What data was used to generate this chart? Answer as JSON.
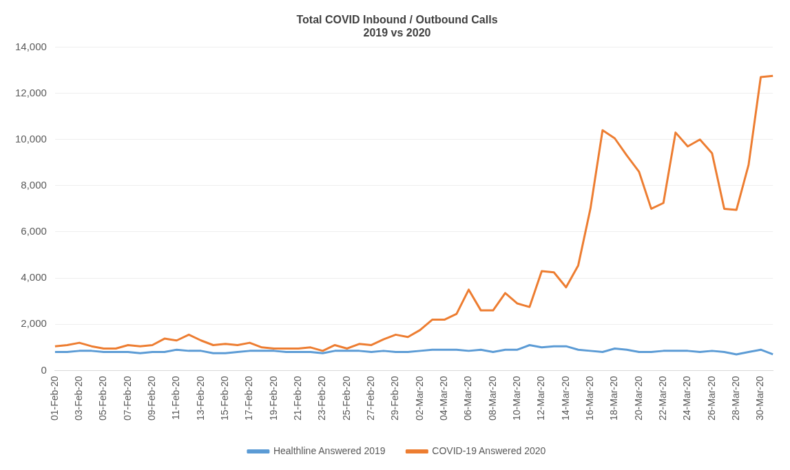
{
  "chart_data": {
    "type": "line",
    "title": [
      "Total COVID Inbound / Outbound Calls",
      "2019 vs 2020"
    ],
    "categories": [
      "01-Feb-20",
      null,
      "03-Feb-20",
      null,
      "05-Feb-20",
      null,
      "07-Feb-20",
      null,
      "09-Feb-20",
      null,
      "11-Feb-20",
      null,
      "13-Feb-20",
      null,
      "15-Feb-20",
      null,
      "17-Feb-20",
      null,
      "19-Feb-20",
      null,
      "21-Feb-20",
      null,
      "23-Feb-20",
      null,
      "25-Feb-20",
      null,
      "27-Feb-20",
      null,
      "29-Feb-20",
      null,
      "02-Mar-20",
      null,
      "04-Mar-20",
      null,
      "06-Mar-20",
      null,
      "08-Mar-20",
      null,
      "10-Mar-20",
      null,
      "12-Mar-20",
      null,
      "14-Mar-20",
      null,
      "16-Mar-20",
      null,
      "18-Mar-20",
      null,
      "20-Mar-20",
      null,
      "22-Mar-20",
      null,
      "24-Mar-20",
      null,
      "26-Mar-20",
      null,
      "28-Mar-20",
      null,
      "30-Mar-20",
      null
    ],
    "series": [
      {
        "name": "Healthline Answered 2019",
        "color": "#5b9bd5",
        "values": [
          800,
          800,
          850,
          850,
          800,
          800,
          800,
          750,
          800,
          800,
          900,
          850,
          850,
          750,
          750,
          800,
          850,
          850,
          850,
          800,
          800,
          800,
          750,
          850,
          850,
          850,
          800,
          850,
          800,
          800,
          850,
          900,
          900,
          900,
          850,
          900,
          800,
          900,
          900,
          1100,
          1000,
          1050,
          1050,
          900,
          850,
          800,
          950,
          900,
          800,
          800,
          850,
          850,
          850,
          800,
          850,
          800,
          700,
          800,
          900,
          700
        ]
      },
      {
        "name": "COVID-19 Answered 2020",
        "color": "#ed7d31",
        "values": [
          1050,
          1100,
          1200,
          1050,
          950,
          950,
          1100,
          1050,
          1100,
          1380,
          1300,
          1550,
          1300,
          1100,
          1150,
          1100,
          1200,
          1000,
          950,
          950,
          950,
          1000,
          850,
          1100,
          950,
          1150,
          1100,
          1350,
          1550,
          1450,
          1750,
          2200,
          2200,
          2450,
          3500,
          2600,
          2600,
          3350,
          2900,
          2750,
          4300,
          4250,
          3600,
          4550,
          7000,
          10400,
          10050,
          9300,
          8600,
          7000,
          7250,
          10300,
          9700,
          10000,
          9400,
          7000,
          6950,
          8900,
          12700,
          12750
        ]
      }
    ],
    "ylim": [
      0,
      14000
    ],
    "yticks": [
      {
        "value": 0,
        "label": "0"
      },
      {
        "value": 2000,
        "label": "2,000"
      },
      {
        "value": 4000,
        "label": "4,000"
      },
      {
        "value": 6000,
        "label": "6,000"
      },
      {
        "value": 8000,
        "label": "8,000"
      },
      {
        "value": 10000,
        "label": "10,000"
      },
      {
        "value": 12000,
        "label": "12,000"
      },
      {
        "value": 14000,
        "label": "14,000"
      }
    ],
    "grid": "y",
    "legend": "bottom",
    "marker": "none",
    "line_style": "solid"
  }
}
